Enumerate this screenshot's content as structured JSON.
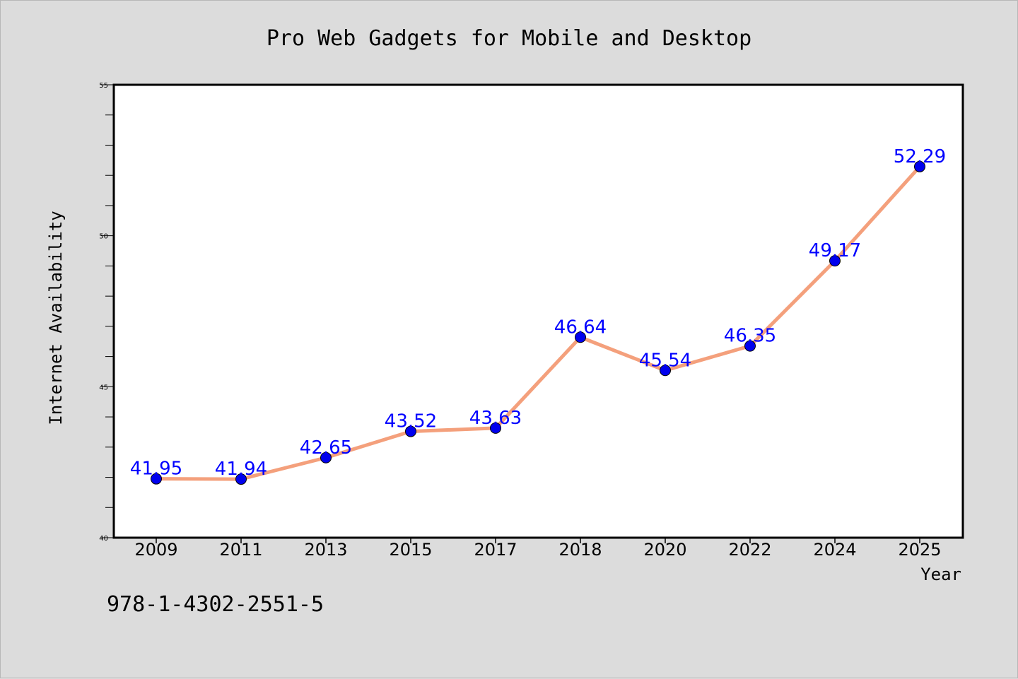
{
  "chart_data": {
    "type": "line",
    "title": "Pro Web Gadgets for Mobile and Desktop",
    "xlabel": "Year",
    "ylabel": "Internet Availability",
    "categories": [
      "2009",
      "2011",
      "2013",
      "2015",
      "2017",
      "2018",
      "2020",
      "2022",
      "2024",
      "2025"
    ],
    "series": [
      {
        "values": [
          41.95,
          41.94,
          42.65,
          43.52,
          43.63,
          46.64,
          45.54,
          46.35,
          49.17,
          52.29
        ],
        "line_color": "#f4a07c",
        "marker_color": "#0000ee"
      }
    ],
    "data_labels": [
      "41.95",
      "41.94",
      "42.65",
      "43.52",
      "43.63",
      "46.64",
      "45.54",
      "46.35",
      "49.17",
      "52.29"
    ],
    "ylim": [
      40,
      55
    ],
    "yticks": [
      40,
      45,
      50,
      55
    ],
    "ytick_labels": [
      "40",
      "45",
      "50",
      "55"
    ],
    "grid": false,
    "label_color": "#0000ff"
  },
  "footer_text": "978-1-4302-2551-5"
}
